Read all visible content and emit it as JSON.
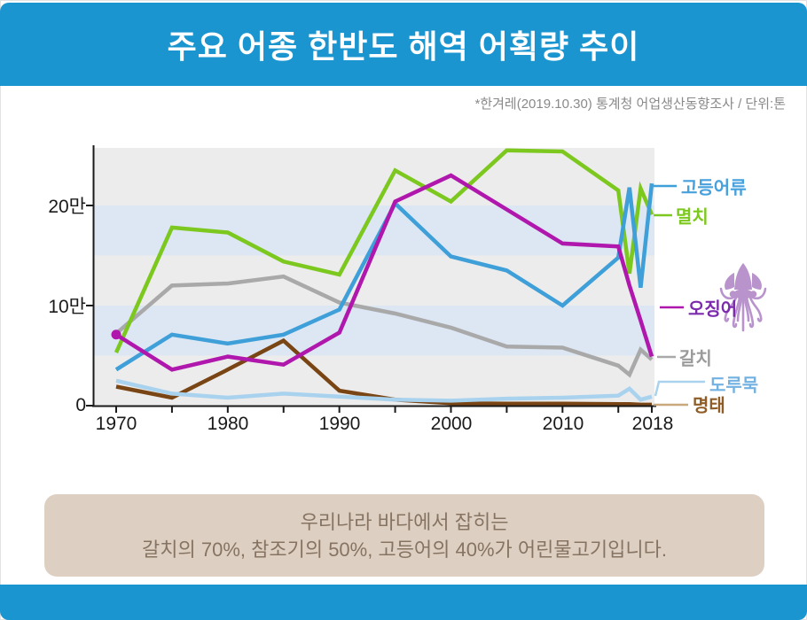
{
  "header": {
    "title": "주요 어종 한반도 해역 어획량 추이",
    "bg_color": "#1b95cf"
  },
  "source_note": "*한겨레(2019.10.30) 통계청 어업생산동향조사 / 단위:톤",
  "chart_data": {
    "type": "line",
    "title": "주요 어종 한반도 해역 어획량 추이",
    "unit": "톤",
    "value_unit_note": "values in 만 톤 (10,000 tons)",
    "x": [
      1970,
      1975,
      1980,
      1985,
      1990,
      1995,
      2000,
      2005,
      2010,
      2015,
      2016,
      2017,
      2018
    ],
    "x_tick_years": [
      1970,
      1975,
      1980,
      1985,
      1990,
      1995,
      2000,
      2005,
      2010,
      2015,
      2018
    ],
    "x_tick_labels": [
      "1970",
      "1980",
      "1990",
      "2000",
      "2010",
      "2018"
    ],
    "x_tick_label_years": [
      1970,
      1980,
      1990,
      2000,
      2010,
      2018
    ],
    "y_ticks": [
      {
        "v": 0,
        "label": "0"
      },
      {
        "v": 10,
        "label": "10만"
      },
      {
        "v": 20,
        "label": "20만"
      }
    ],
    "ylim": [
      0,
      25.8
    ],
    "bands": [
      [
        15,
        20
      ],
      [
        5,
        10
      ]
    ],
    "band_color": "#dce7f3",
    "plot_bg_color": "#ececec",
    "grid": false,
    "legend_position": "right labels with leader lines",
    "series": [
      {
        "name": "고등어류",
        "color": "#3f9fd8",
        "label_color": "#46a1dd",
        "values": [
          3.6,
          7.1,
          6.2,
          7.1,
          9.6,
          20.2,
          14.9,
          13.5,
          10.0,
          14.8,
          21.8,
          11.8,
          22.2
        ]
      },
      {
        "name": "멸치",
        "color": "#7cc81e",
        "label_color": "#7cc81e",
        "values": [
          5.3,
          17.8,
          17.3,
          14.4,
          13.1,
          23.5,
          20.4,
          25.5,
          25.4,
          21.5,
          13.2,
          21.7,
          19.1
        ]
      },
      {
        "name": "오징어",
        "color": "#b017ad",
        "label_color": "#7c2bae",
        "start_marker": true,
        "values": [
          7.1,
          3.6,
          4.9,
          4.1,
          7.3,
          20.4,
          23.0,
          19.6,
          16.2,
          15.9,
          12.0,
          8.5,
          4.9
        ]
      },
      {
        "name": "갈치",
        "color": "#a9a9a9",
        "label_color": "#9b9b9b",
        "values": [
          7.2,
          12.0,
          12.2,
          12.9,
          10.3,
          9.2,
          7.8,
          5.9,
          5.8,
          4.0,
          3.1,
          5.6,
          4.6
        ]
      },
      {
        "name": "도루묵",
        "color": "#a9d2ee",
        "label_color": "#72b2e2",
        "values": [
          2.5,
          1.2,
          0.8,
          1.2,
          0.9,
          0.6,
          0.5,
          0.7,
          0.8,
          1.0,
          1.7,
          0.6,
          0.9
        ]
      },
      {
        "name": "명태",
        "color": "#7a4514",
        "label_color": "#8e5c26",
        "leader_color": "#c9a87c",
        "values": [
          1.9,
          0.8,
          3.6,
          6.5,
          1.5,
          0.6,
          0.25,
          0.2,
          0.2,
          0.15,
          0.15,
          0.1,
          0.1
        ]
      }
    ]
  },
  "icons": {
    "squid": {
      "name": "squid-icon",
      "color": "#b993cc"
    }
  },
  "footnote_box": {
    "line1": "우리나라 바다에서 잡히는",
    "line2": "갈치의 70%, 참조기의 50%, 고등어의 40%가 어린물고기입니다.",
    "bg_color": "#ddd0c3",
    "text_color": "#867362"
  }
}
